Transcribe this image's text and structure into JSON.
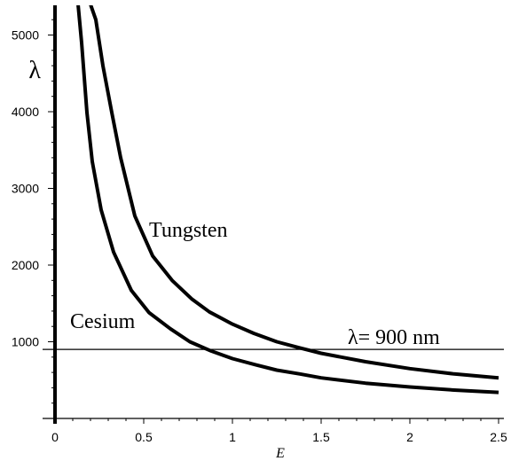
{
  "chart_data": {
    "type": "line",
    "title": "",
    "xlabel": "E",
    "ylabel": "λ",
    "xlim": [
      0,
      2.5
    ],
    "ylim": [
      0,
      5400
    ],
    "grid": false,
    "legend": "none",
    "x_ticks": [
      0,
      0.5,
      1,
      1.5,
      2,
      2.5
    ],
    "x_tick_labels": [
      "0",
      "0.5",
      "1",
      "1.5",
      "2",
      "2.5"
    ],
    "y_ticks": [
      1000,
      2000,
      3000,
      4000,
      5000
    ],
    "y_tick_labels": [
      "1000",
      "2000",
      "3000",
      "4000",
      "5000"
    ],
    "series": [
      {
        "name": "Tungsten",
        "x": [
          0.2,
          0.23,
          0.27,
          0.32,
          0.37,
          0.45,
          0.55,
          0.66,
          0.77,
          0.87,
          1.0,
          1.12,
          1.25,
          1.38,
          1.5,
          1.75,
          2.0,
          2.25,
          2.5
        ],
        "y": [
          5400,
          5200,
          4600,
          3990,
          3400,
          2640,
          2120,
          1800,
          1560,
          1390,
          1230,
          1110,
          1000,
          920,
          850,
          740,
          650,
          580,
          530
        ]
      },
      {
        "name": "Cesium",
        "x": [
          0.13,
          0.15,
          0.18,
          0.21,
          0.26,
          0.33,
          0.43,
          0.53,
          0.65,
          0.76,
          0.88,
          1.0,
          1.13,
          1.25,
          1.38,
          1.5,
          1.75,
          2.0,
          2.25,
          2.5
        ],
        "y": [
          5400,
          4900,
          3990,
          3350,
          2720,
          2170,
          1670,
          1380,
          1170,
          1000,
          880,
          780,
          700,
          630,
          580,
          530,
          460,
          410,
          370,
          340
        ]
      }
    ],
    "reference_line": {
      "y": 900,
      "label": "λ= 900 nm"
    },
    "color": "#000000"
  }
}
